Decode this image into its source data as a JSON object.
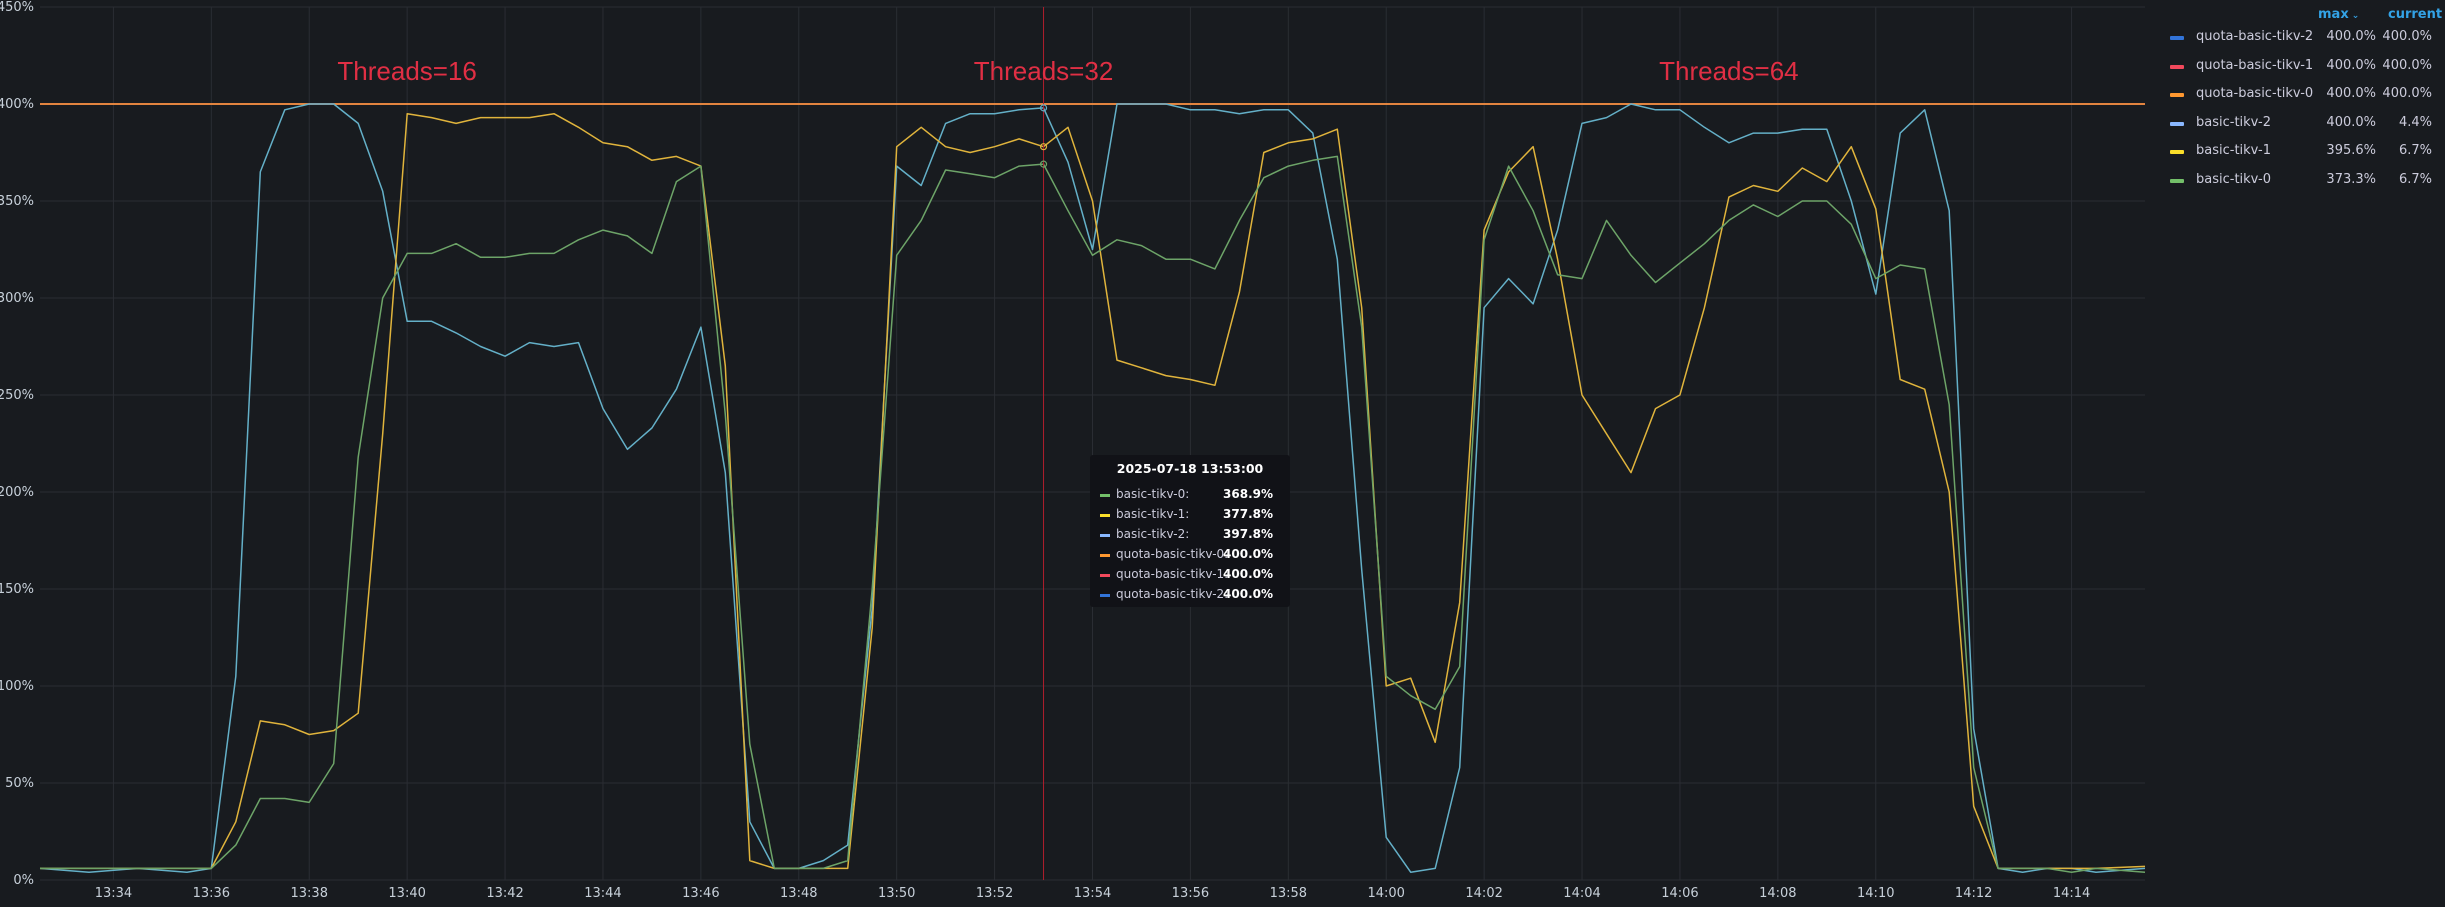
{
  "chart_data": {
    "type": "line",
    "y_unit": "percent",
    "ylim": [
      0,
      450
    ],
    "y_ticks": [
      0,
      50,
      100,
      150,
      200,
      250,
      300,
      350,
      400,
      450
    ],
    "y_tick_labels": [
      "0%",
      "50%",
      "100%",
      "150%",
      "200%",
      "250%",
      "300%",
      "350%",
      "400%",
      "450%"
    ],
    "x_range": [
      "13:32:30",
      "14:15:30"
    ],
    "x_ticks": [
      "13:34",
      "13:36",
      "13:38",
      "13:40",
      "13:42",
      "13:44",
      "13:46",
      "13:48",
      "13:50",
      "13:52",
      "13:54",
      "13:56",
      "13:58",
      "14:00",
      "14:02",
      "14:04",
      "14:06",
      "14:08",
      "14:10",
      "14:12",
      "14:14"
    ],
    "grid": true,
    "legend_position": "right",
    "cursor_time": "13:53:00",
    "annotations": [
      {
        "text": "Threads=16",
        "x": "13:40"
      },
      {
        "text": "Threads=32",
        "x": "13:53"
      },
      {
        "text": "Threads=64",
        "x": "14:07"
      }
    ],
    "series": [
      {
        "name": "quota-basic-tikv-2",
        "color": "#3274d9",
        "max": "400.0%",
        "current": "400.0%",
        "points": [
          [
            "13:32:30",
            400
          ],
          [
            "14:15:30",
            400
          ]
        ]
      },
      {
        "name": "quota-basic-tikv-1",
        "color": "#f2495c",
        "max": "400.0%",
        "current": "400.0%",
        "points": [
          [
            "13:32:30",
            400
          ],
          [
            "14:15:30",
            400
          ]
        ]
      },
      {
        "name": "quota-basic-tikv-0",
        "color": "#ff9830",
        "max": "400.0%",
        "current": "400.0%",
        "points": [
          [
            "13:32:30",
            400
          ],
          [
            "14:15:30",
            400
          ]
        ]
      },
      {
        "name": "basic-tikv-2",
        "color": "#8ab8ff",
        "line_color": "#64b0c8",
        "max": "400.0%",
        "current": "4.4%",
        "points": [
          [
            "13:32:30",
            6
          ],
          [
            "13:33:30",
            4
          ],
          [
            "13:34:30",
            6
          ],
          [
            "13:35:30",
            4
          ],
          [
            "13:36",
            6
          ],
          [
            "13:36:30",
            105
          ],
          [
            "13:37",
            365
          ],
          [
            "13:37:30",
            397
          ],
          [
            "13:38",
            400
          ],
          [
            "13:38:30",
            400
          ],
          [
            "13:39",
            390
          ],
          [
            "13:39:30",
            355
          ],
          [
            "13:40",
            288
          ],
          [
            "13:40:30",
            288
          ],
          [
            "13:41",
            282
          ],
          [
            "13:41:30",
            275
          ],
          [
            "13:42",
            270
          ],
          [
            "13:42:30",
            277
          ],
          [
            "13:43",
            275
          ],
          [
            "13:43:30",
            277
          ],
          [
            "13:44",
            243
          ],
          [
            "13:44:30",
            222
          ],
          [
            "13:45",
            233
          ],
          [
            "13:45:30",
            253
          ],
          [
            "13:46",
            285
          ],
          [
            "13:46:30",
            210
          ],
          [
            "13:47",
            30
          ],
          [
            "13:47:30",
            6
          ],
          [
            "13:48",
            6
          ],
          [
            "13:48:30",
            10
          ],
          [
            "13:49",
            18
          ],
          [
            "13:49:30",
            140
          ],
          [
            "13:50",
            368
          ],
          [
            "13:50:30",
            358
          ],
          [
            "13:51",
            390
          ],
          [
            "13:51:30",
            395
          ],
          [
            "13:52",
            395
          ],
          [
            "13:52:30",
            397
          ],
          [
            "13:53",
            398
          ],
          [
            "13:53:30",
            370
          ],
          [
            "13:54",
            325
          ],
          [
            "13:54:30",
            400
          ],
          [
            "13:55",
            400
          ],
          [
            "13:55:30",
            400
          ],
          [
            "13:56",
            397
          ],
          [
            "13:56:30",
            397
          ],
          [
            "13:57",
            395
          ],
          [
            "13:57:30",
            397
          ],
          [
            "13:58",
            397
          ],
          [
            "13:58:30",
            385
          ],
          [
            "13:59",
            320
          ],
          [
            "13:59:30",
            160
          ],
          [
            "14:00",
            22
          ],
          [
            "14:00:30",
            4
          ],
          [
            "14:01",
            6
          ],
          [
            "14:01:30",
            58
          ],
          [
            "14:02",
            295
          ],
          [
            "14:02:30",
            310
          ],
          [
            "14:03",
            297
          ],
          [
            "14:03:30",
            335
          ],
          [
            "14:04",
            390
          ],
          [
            "14:04:30",
            393
          ],
          [
            "14:05",
            400
          ],
          [
            "14:05:30",
            397
          ],
          [
            "14:06",
            397
          ],
          [
            "14:06:30",
            388
          ],
          [
            "14:07",
            380
          ],
          [
            "14:07:30",
            385
          ],
          [
            "14:08",
            385
          ],
          [
            "14:08:30",
            387
          ],
          [
            "14:09",
            387
          ],
          [
            "14:09:30",
            350
          ],
          [
            "14:10",
            302
          ],
          [
            "14:10:30",
            385
          ],
          [
            "14:11",
            397
          ],
          [
            "14:11:30",
            345
          ],
          [
            "14:12",
            78
          ],
          [
            "14:12:30",
            6
          ],
          [
            "14:13",
            4
          ],
          [
            "14:13:30",
            6
          ],
          [
            "14:14",
            6
          ],
          [
            "14:14:30",
            4
          ],
          [
            "14:15:30",
            6
          ]
        ]
      },
      {
        "name": "basic-tikv-1",
        "color": "#fade2a",
        "line_color": "#e0b43c",
        "max": "395.6%",
        "current": "6.7%",
        "points": [
          [
            "13:32:30",
            6
          ],
          [
            "13:33:30",
            6
          ],
          [
            "13:34:30",
            6
          ],
          [
            "13:35:30",
            6
          ],
          [
            "13:36",
            6
          ],
          [
            "13:36:30",
            30
          ],
          [
            "13:37",
            82
          ],
          [
            "13:37:30",
            80
          ],
          [
            "13:38",
            75
          ],
          [
            "13:38:30",
            77
          ],
          [
            "13:39",
            86
          ],
          [
            "13:39:30",
            230
          ],
          [
            "13:40",
            395
          ],
          [
            "13:40:30",
            393
          ],
          [
            "13:41",
            390
          ],
          [
            "13:41:30",
            393
          ],
          [
            "13:42",
            393
          ],
          [
            "13:42:30",
            393
          ],
          [
            "13:43",
            395
          ],
          [
            "13:43:30",
            388
          ],
          [
            "13:44",
            380
          ],
          [
            "13:44:30",
            378
          ],
          [
            "13:45",
            371
          ],
          [
            "13:45:30",
            373
          ],
          [
            "13:46",
            368
          ],
          [
            "13:46:30",
            265
          ],
          [
            "13:47",
            10
          ],
          [
            "13:47:30",
            6
          ],
          [
            "13:48",
            6
          ],
          [
            "13:48:30",
            6
          ],
          [
            "13:49",
            6
          ],
          [
            "13:49:30",
            130
          ],
          [
            "13:50",
            378
          ],
          [
            "13:50:30",
            388
          ],
          [
            "13:51",
            378
          ],
          [
            "13:51:30",
            375
          ],
          [
            "13:52",
            378
          ],
          [
            "13:52:30",
            382
          ],
          [
            "13:53",
            378
          ],
          [
            "13:53:30",
            388
          ],
          [
            "13:54",
            350
          ],
          [
            "13:54:30",
            268
          ],
          [
            "13:55",
            264
          ],
          [
            "13:55:30",
            260
          ],
          [
            "13:56",
            258
          ],
          [
            "13:56:30",
            255
          ],
          [
            "13:57",
            303
          ],
          [
            "13:57:30",
            375
          ],
          [
            "13:58",
            380
          ],
          [
            "13:58:30",
            382
          ],
          [
            "13:59",
            387
          ],
          [
            "13:59:30",
            295
          ],
          [
            "14:00",
            100
          ],
          [
            "14:00:30",
            104
          ],
          [
            "14:01",
            71
          ],
          [
            "14:01:30",
            143
          ],
          [
            "14:02",
            335
          ],
          [
            "14:02:30",
            365
          ],
          [
            "14:03",
            378
          ],
          [
            "14:03:30",
            320
          ],
          [
            "14:04",
            250
          ],
          [
            "14:04:30",
            230
          ],
          [
            "14:05",
            210
          ],
          [
            "14:05:30",
            243
          ],
          [
            "14:06",
            250
          ],
          [
            "14:06:30",
            295
          ],
          [
            "14:07",
            352
          ],
          [
            "14:07:30",
            358
          ],
          [
            "14:08",
            355
          ],
          [
            "14:08:30",
            367
          ],
          [
            "14:09",
            360
          ],
          [
            "14:09:30",
            378
          ],
          [
            "14:10",
            346
          ],
          [
            "14:10:30",
            258
          ],
          [
            "14:11",
            253
          ],
          [
            "14:11:30",
            200
          ],
          [
            "14:12",
            38
          ],
          [
            "14:12:30",
            6
          ],
          [
            "14:13",
            6
          ],
          [
            "14:13:30",
            6
          ],
          [
            "14:14",
            6
          ],
          [
            "14:14:30",
            6
          ],
          [
            "14:15:30",
            7
          ]
        ]
      },
      {
        "name": "basic-tikv-0",
        "color": "#73bf69",
        "line_color": "#6da468",
        "max": "373.3%",
        "current": "6.7%",
        "points": [
          [
            "13:32:30",
            6
          ],
          [
            "13:33:30",
            6
          ],
          [
            "13:34:30",
            6
          ],
          [
            "13:35:30",
            6
          ],
          [
            "13:36",
            6
          ],
          [
            "13:36:30",
            18
          ],
          [
            "13:37",
            42
          ],
          [
            "13:37:30",
            42
          ],
          [
            "13:38",
            40
          ],
          [
            "13:38:30",
            60
          ],
          [
            "13:39",
            218
          ],
          [
            "13:39:30",
            300
          ],
          [
            "13:40",
            323
          ],
          [
            "13:40:30",
            323
          ],
          [
            "13:41",
            328
          ],
          [
            "13:41:30",
            321
          ],
          [
            "13:42",
            321
          ],
          [
            "13:42:30",
            323
          ],
          [
            "13:43",
            323
          ],
          [
            "13:43:30",
            330
          ],
          [
            "13:44",
            335
          ],
          [
            "13:44:30",
            332
          ],
          [
            "13:45",
            323
          ],
          [
            "13:45:30",
            360
          ],
          [
            "13:46",
            368
          ],
          [
            "13:46:30",
            240
          ],
          [
            "13:47",
            70
          ],
          [
            "13:47:30",
            6
          ],
          [
            "13:48",
            6
          ],
          [
            "13:48:30",
            6
          ],
          [
            "13:49",
            10
          ],
          [
            "13:49:30",
            150
          ],
          [
            "13:50",
            322
          ],
          [
            "13:50:30",
            340
          ],
          [
            "13:51",
            366
          ],
          [
            "13:51:30",
            364
          ],
          [
            "13:52",
            362
          ],
          [
            "13:52:30",
            368
          ],
          [
            "13:53",
            369
          ],
          [
            "13:53:30",
            345
          ],
          [
            "13:54",
            322
          ],
          [
            "13:54:30",
            330
          ],
          [
            "13:55",
            327
          ],
          [
            "13:55:30",
            320
          ],
          [
            "13:56",
            320
          ],
          [
            "13:56:30",
            315
          ],
          [
            "13:57",
            340
          ],
          [
            "13:57:30",
            362
          ],
          [
            "13:58",
            368
          ],
          [
            "13:58:30",
            371
          ],
          [
            "13:59",
            373
          ],
          [
            "13:59:30",
            285
          ],
          [
            "14:00",
            105
          ],
          [
            "14:00:30",
            95
          ],
          [
            "14:01",
            88
          ],
          [
            "14:01:30",
            110
          ],
          [
            "14:02",
            330
          ],
          [
            "14:02:30",
            368
          ],
          [
            "14:03",
            345
          ],
          [
            "14:03:30",
            312
          ],
          [
            "14:04",
            310
          ],
          [
            "14:04:30",
            340
          ],
          [
            "14:05",
            322
          ],
          [
            "14:05:30",
            308
          ],
          [
            "14:06",
            318
          ],
          [
            "14:06:30",
            328
          ],
          [
            "14:07",
            340
          ],
          [
            "14:07:30",
            348
          ],
          [
            "14:08",
            342
          ],
          [
            "14:08:30",
            350
          ],
          [
            "14:09",
            350
          ],
          [
            "14:09:30",
            338
          ],
          [
            "14:10",
            310
          ],
          [
            "14:10:30",
            317
          ],
          [
            "14:11",
            315
          ],
          [
            "14:11:30",
            245
          ],
          [
            "14:12",
            58
          ],
          [
            "14:12:30",
            6
          ],
          [
            "14:13",
            6
          ],
          [
            "14:13:30",
            6
          ],
          [
            "14:14",
            4
          ],
          [
            "14:14:30",
            6
          ],
          [
            "14:15:30",
            4
          ]
        ]
      }
    ]
  },
  "legend": {
    "max_header": "max",
    "current_header": "current",
    "sort_icon": "chevron-down-icon",
    "items": [
      {
        "name": "quota-basic-tikv-2",
        "max": "400.0%",
        "current": "400.0%"
      },
      {
        "name": "quota-basic-tikv-1",
        "max": "400.0%",
        "current": "400.0%"
      },
      {
        "name": "quota-basic-tikv-0",
        "max": "400.0%",
        "current": "400.0%"
      },
      {
        "name": "basic-tikv-2",
        "max": "400.0%",
        "current": "4.4%"
      },
      {
        "name": "basic-tikv-1",
        "max": "395.6%",
        "current": "6.7%"
      },
      {
        "name": "basic-tikv-0",
        "max": "373.3%",
        "current": "6.7%"
      }
    ]
  },
  "tooltip": {
    "time": "2025-07-18 13:53:00",
    "rows": [
      {
        "name": "basic-tikv-0:",
        "value": "368.9%",
        "color": "#73bf69"
      },
      {
        "name": "basic-tikv-1:",
        "value": "377.8%",
        "color": "#fade2a"
      },
      {
        "name": "basic-tikv-2:",
        "value": "397.8%",
        "color": "#8ab8ff"
      },
      {
        "name": "quota-basic-tikv-0:",
        "value": "400.0%",
        "color": "#ff9830"
      },
      {
        "name": "quota-basic-tikv-1:",
        "value": "400.0%",
        "color": "#f2495c"
      },
      {
        "name": "quota-basic-tikv-2:",
        "value": "400.0%",
        "color": "#3274d9"
      }
    ]
  }
}
